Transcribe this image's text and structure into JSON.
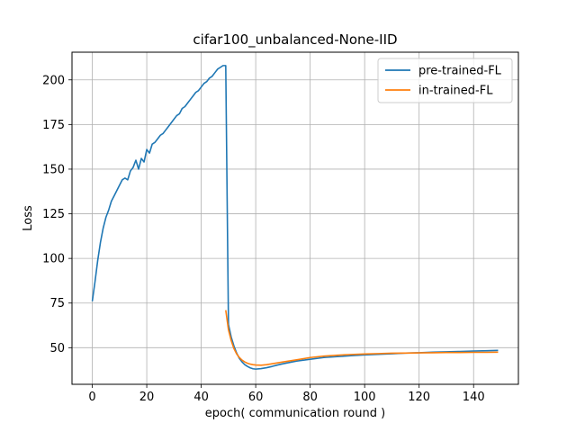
{
  "chart_data": {
    "type": "line",
    "title": "cifar100_unbalanced-None-IID",
    "xlabel": "epoch( communication round )",
    "ylabel": "Loss",
    "xlim": [
      -7.45,
      156.45
    ],
    "ylim": [
      29.5,
      215.5
    ],
    "xticks": [
      0,
      20,
      40,
      60,
      80,
      100,
      120,
      140
    ],
    "yticks": [
      50,
      75,
      100,
      125,
      150,
      175,
      200
    ],
    "grid": true,
    "legend_position": "top-right",
    "series": [
      {
        "name": "pre-trained-FL",
        "color": "#1f77b4",
        "x": [
          0,
          1,
          2,
          3,
          4,
          5,
          6,
          7,
          8,
          9,
          10,
          11,
          12,
          13,
          14,
          15,
          16,
          17,
          18,
          19,
          20,
          21,
          22,
          23,
          24,
          25,
          26,
          27,
          28,
          29,
          30,
          31,
          32,
          33,
          34,
          35,
          36,
          37,
          38,
          39,
          40,
          41,
          42,
          43,
          44,
          45,
          46,
          47,
          48,
          49,
          50,
          51,
          52,
          53,
          54,
          55,
          56,
          57,
          58,
          59,
          60,
          62,
          64,
          66,
          68,
          70,
          75,
          80,
          85,
          90,
          95,
          100,
          105,
          110,
          115,
          120,
          125,
          130,
          135,
          140,
          145,
          149
        ],
        "y": [
          76,
          87,
          99,
          109,
          117,
          123,
          127,
          132,
          135,
          138,
          141,
          144,
          145,
          144,
          149,
          151,
          155,
          150,
          156,
          154,
          161,
          159,
          164,
          165,
          167,
          169,
          170,
          172,
          174,
          176,
          178,
          180,
          181,
          184,
          185,
          187,
          189,
          191,
          193,
          194,
          196,
          198,
          199,
          201,
          202,
          204,
          206,
          207,
          208,
          208,
          63,
          56,
          51,
          47,
          44,
          42,
          40.5,
          39.5,
          38.7,
          38.2,
          38,
          38.3,
          38.8,
          39.5,
          40.3,
          41,
          42.5,
          43.5,
          44.5,
          45,
          45.5,
          46,
          46.3,
          46.6,
          47,
          47.2,
          47.5,
          47.7,
          47.9,
          48.1,
          48.3,
          48.5
        ]
      },
      {
        "name": "in-trained-FL",
        "color": "#ff7f0e",
        "x": [
          49,
          50,
          51,
          52,
          53,
          54,
          55,
          56,
          57,
          58,
          59,
          60,
          62,
          64,
          66,
          68,
          70,
          75,
          80,
          85,
          90,
          95,
          100,
          105,
          110,
          115,
          120,
          125,
          130,
          135,
          140,
          145,
          149
        ],
        "y": [
          71,
          60,
          54,
          49.5,
          46.5,
          44.5,
          43,
          42,
          41.3,
          40.8,
          40.5,
          40.3,
          40.2,
          40.5,
          41,
          41.5,
          42,
          43.2,
          44.5,
          45.3,
          45.8,
          46.2,
          46.5,
          46.7,
          46.9,
          47,
          47.1,
          47.2,
          47.3,
          47.3,
          47.4,
          47.4,
          47.5
        ]
      }
    ]
  }
}
